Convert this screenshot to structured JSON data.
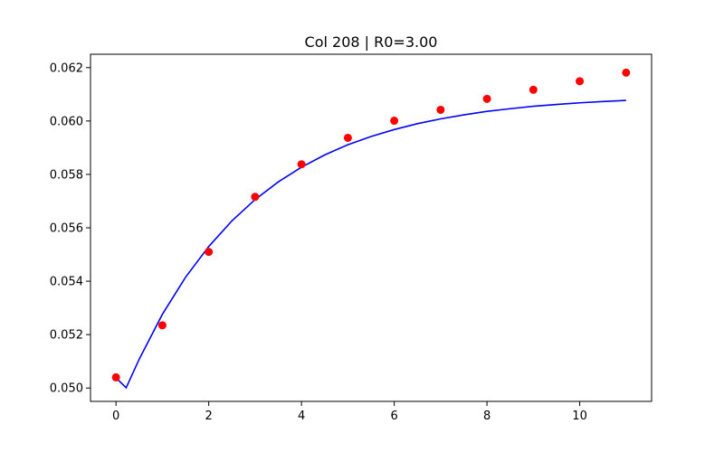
{
  "chart_data": {
    "type": "scatter",
    "title": "Col 208 | R0=3.00",
    "xlabel": "",
    "ylabel": "",
    "xlim": [
      -0.55,
      11.55
    ],
    "ylim": [
      0.0495,
      0.0625
    ],
    "grid": false,
    "x_ticks": [
      0,
      2,
      4,
      6,
      8,
      10
    ],
    "x_tick_labels": [
      "0",
      "2",
      "4",
      "6",
      "8",
      "10"
    ],
    "y_ticks": [
      0.05,
      0.052,
      0.054,
      0.056,
      0.058,
      0.06,
      0.062
    ],
    "y_tick_labels": [
      "0.050",
      "0.052",
      "0.054",
      "0.056",
      "0.058",
      "0.060",
      "0.062"
    ],
    "series": [
      {
        "kind": "scatter",
        "color": "#ff0000",
        "x": [
          0,
          1,
          2,
          3,
          4,
          5,
          6,
          7,
          8,
          9,
          10,
          11
        ],
        "y": [
          0.0504,
          0.05235,
          0.0551,
          0.05716,
          0.05838,
          0.05937,
          0.06001,
          0.06042,
          0.06083,
          0.06117,
          0.06149,
          0.06181
        ]
      },
      {
        "kind": "line",
        "color": "#0000ff",
        "x": [
          0,
          0.22,
          0.5,
          1,
          1.5,
          2,
          2.5,
          3,
          3.5,
          4,
          4.5,
          5,
          5.5,
          6,
          6.5,
          7,
          7.5,
          8,
          8.5,
          9,
          9.5,
          10,
          10.5,
          11
        ],
        "y": [
          0.05038,
          0.05001,
          0.05108,
          0.05276,
          0.05415,
          0.0553,
          0.05626,
          0.05706,
          0.05772,
          0.05827,
          0.05873,
          0.05911,
          0.05942,
          0.05968,
          0.0599,
          0.06008,
          0.06023,
          0.06036,
          0.06046,
          0.06055,
          0.06062,
          0.06068,
          0.06073,
          0.06077
        ]
      }
    ]
  }
}
